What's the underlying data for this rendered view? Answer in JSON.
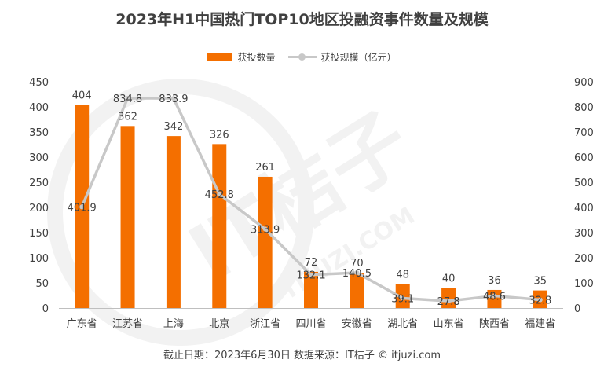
{
  "chart_data": {
    "type": "bar",
    "title": "2023年H1中国热门TOP10地区投融资事件数量及规模",
    "categories": [
      "广东省",
      "江苏省",
      "上海",
      "北京",
      "浙江省",
      "四川省",
      "安徽省",
      "湖北省",
      "山东省",
      "陕西省",
      "福建省"
    ],
    "series": [
      {
        "name": "获投数量",
        "type": "bar",
        "axis": "left",
        "values": [
          404,
          362,
          342,
          326,
          261,
          72,
          70,
          48,
          40,
          36,
          35
        ],
        "labels": [
          "404",
          "362",
          "342",
          "326",
          "261",
          "72",
          "70",
          "48",
          "40",
          "36",
          "35"
        ]
      },
      {
        "name": "获投规模（亿元）",
        "type": "line",
        "axis": "right",
        "values": [
          401.9,
          834.8,
          833.9,
          452.8,
          313.9,
          132.1,
          140.5,
          39.1,
          27.8,
          48.6,
          32.8
        ],
        "labels": [
          "401.9",
          "834.8",
          "833.9",
          "452.8",
          "313.9",
          "132.1",
          "140.5",
          "39.1",
          "27.8",
          "48.6",
          "32.8"
        ]
      }
    ],
    "y_left": {
      "ylim": [
        0,
        450
      ],
      "ticks": [
        "0",
        "50",
        "100",
        "150",
        "200",
        "250",
        "300",
        "350",
        "400",
        "450"
      ]
    },
    "y_right": {
      "ylim": [
        0,
        900
      ],
      "ticks": [
        "0",
        "100",
        "200",
        "300",
        "400",
        "500",
        "600",
        "700",
        "800",
        "900"
      ]
    },
    "grid": false,
    "legend_position": "top-center",
    "colors": {
      "bar": "#F46F00",
      "line": "#C8C8C8",
      "text": "#404040",
      "axis": "#BFBFBF",
      "watermark": "#F2F2F2"
    }
  },
  "watermark": {
    "brand": "IT桔子",
    "url": "ITJUZI.COM"
  },
  "footer": {
    "text": "截止日期：2023年6月30日    数据来源：IT桔子 © itjuzi.com"
  }
}
